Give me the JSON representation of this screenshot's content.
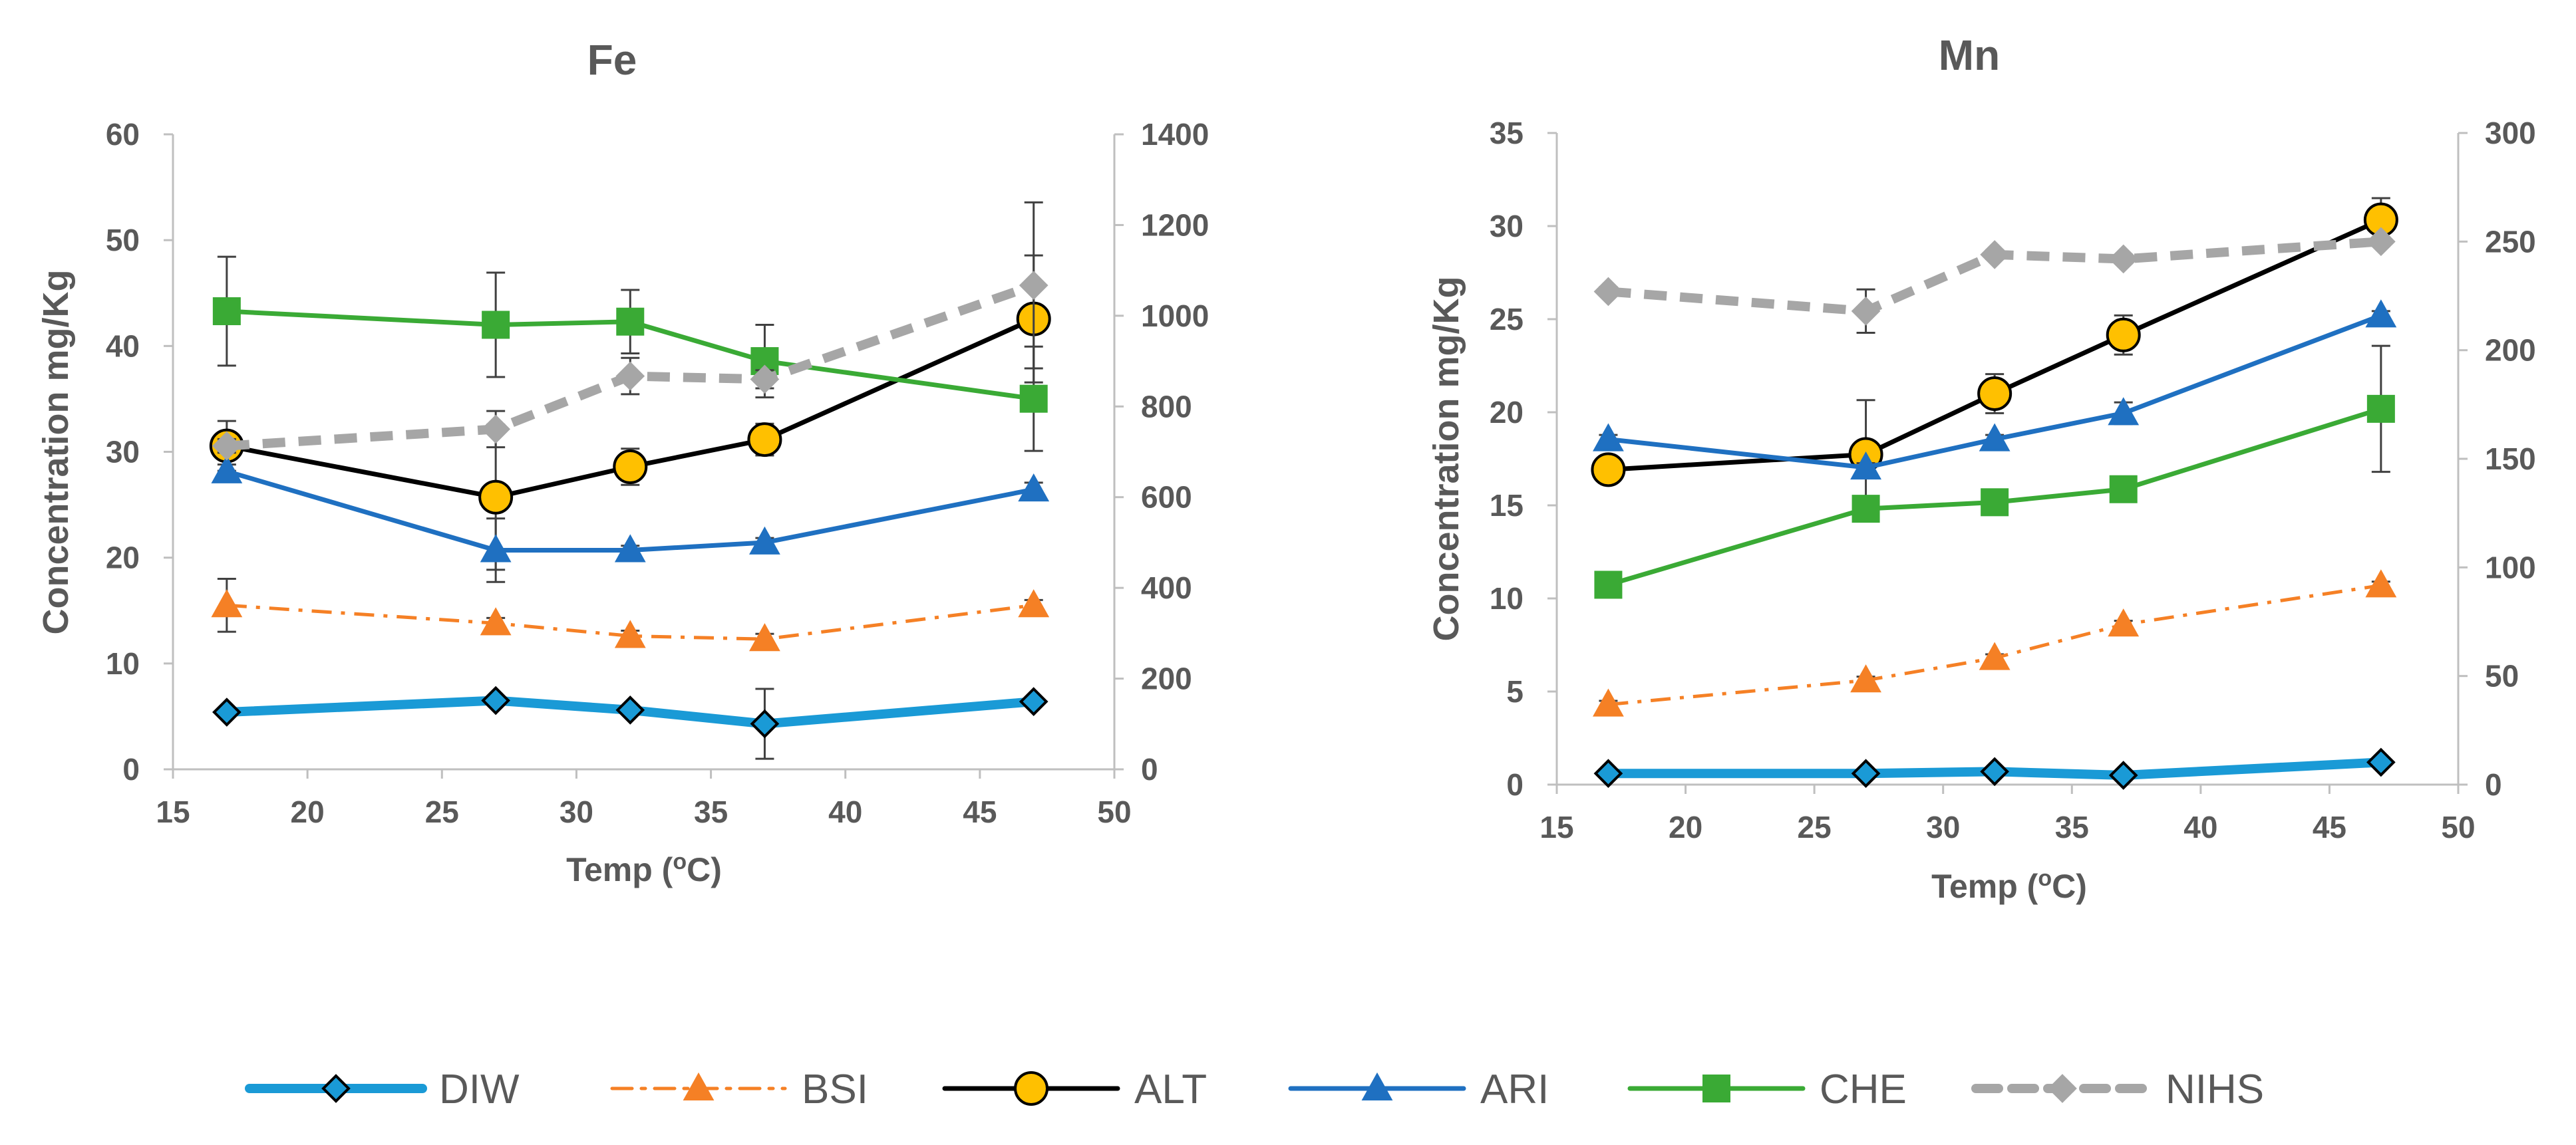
{
  "chart_data": [
    {
      "type": "line",
      "title": "Fe",
      "xlabel_pre": "Temp (",
      "xlabel_sup": "o",
      "xlabel_post": "C)",
      "ylabel": "Concentration mg/Kg",
      "xlim": [
        15,
        50
      ],
      "xticks": [
        "15",
        "20",
        "25",
        "30",
        "35",
        "40",
        "45",
        "50"
      ],
      "ylim": [
        0,
        60
      ],
      "yticks": [
        "0",
        "10",
        "20",
        "30",
        "40",
        "50",
        "60"
      ],
      "y2lim": [
        0,
        1400
      ],
      "y2ticks": [
        "0",
        "200",
        "400",
        "600",
        "800",
        "1000",
        "1200",
        "1400"
      ],
      "x": [
        17,
        27,
        32,
        37,
        47
      ],
      "series": [
        {
          "name": "DIW",
          "axis": "left",
          "values": [
            5.4,
            6.5,
            5.6,
            4.3,
            6.4
          ],
          "err": [
            0.3,
            0.3,
            0.3,
            3.3,
            0.3
          ]
        },
        {
          "name": "BSI",
          "axis": "left",
          "values": [
            15.5,
            13.8,
            12.6,
            12.3,
            15.5
          ],
          "err": [
            2.5,
            0.5,
            0.5,
            0.5,
            0.5
          ]
        },
        {
          "name": "ALT",
          "axis": "right",
          "values": [
            713,
            600,
            667,
            727,
            993
          ],
          "err": [
            55,
            160,
            40,
            35,
            140
          ]
        },
        {
          "name": "ARI",
          "axis": "right",
          "values": [
            657,
            483,
            483,
            500,
            617
          ],
          "err": [
            15,
            70,
            10,
            10,
            15
          ]
        },
        {
          "name": "CHE",
          "axis": "right",
          "values": [
            1010,
            980,
            987,
            900,
            817
          ],
          "err": [
            120,
            115,
            70,
            80,
            115
          ]
        },
        {
          "name": "NIHS",
          "axis": "right",
          "values": [
            713,
            750,
            867,
            860,
            1067
          ],
          "err": [
            15,
            40,
            40,
            20,
            183
          ]
        }
      ]
    },
    {
      "type": "line",
      "title": "Mn",
      "xlabel_pre": "Temp (",
      "xlabel_sup": "o",
      "xlabel_post": "C)",
      "ylabel": "Concentration mg/Kg",
      "xlim": [
        15,
        50
      ],
      "xticks": [
        "15",
        "20",
        "25",
        "30",
        "35",
        "40",
        "45",
        "50"
      ],
      "ylim": [
        0,
        35
      ],
      "yticks": [
        "0",
        "5",
        "10",
        "15",
        "20",
        "25",
        "30",
        "35"
      ],
      "y2lim": [
        0,
        300
      ],
      "y2ticks": [
        "0",
        "50",
        "100",
        "150",
        "200",
        "250",
        "300"
      ],
      "x": [
        17,
        27,
        32,
        37,
        47
      ],
      "series": [
        {
          "name": "DIW",
          "axis": "left",
          "values": [
            0.6,
            0.6,
            0.7,
            0.5,
            1.2
          ],
          "err": [
            0.1,
            0.1,
            0.1,
            0.1,
            0.1
          ]
        },
        {
          "name": "BSI",
          "axis": "left",
          "values": [
            4.3,
            5.6,
            6.8,
            8.6,
            10.7
          ],
          "err": [
            0.2,
            0.2,
            0.2,
            0.2,
            0.2
          ]
        },
        {
          "name": "ALT",
          "axis": "right",
          "values": [
            145,
            152,
            180,
            207,
            260
          ],
          "err": [
            2,
            25,
            9,
            9,
            10
          ]
        },
        {
          "name": "ARI",
          "axis": "right",
          "values": [
            159,
            146,
            159,
            171,
            216
          ],
          "err": [
            2,
            2,
            2,
            5,
            2
          ]
        },
        {
          "name": "CHE",
          "axis": "right",
          "values": [
            92,
            127,
            130,
            136,
            173
          ],
          "err": [
            2,
            2,
            2,
            2,
            29
          ]
        },
        {
          "name": "NIHS",
          "axis": "right",
          "values": [
            227,
            218,
            244,
            242,
            250
          ],
          "err": [
            2,
            10,
            2,
            2,
            2
          ]
        }
      ]
    }
  ],
  "legend": [
    {
      "name": "DIW",
      "color": "#1a9ad6",
      "marker": "diamond",
      "dash": "solid",
      "width": "thick"
    },
    {
      "name": "BSI",
      "color": "#f58025",
      "marker": "triangle",
      "dash": "dashdot",
      "width": "thin"
    },
    {
      "name": "ALT",
      "color": "#000000",
      "marker": "circle",
      "fill": "#ffc000",
      "dash": "solid",
      "width": "normal"
    },
    {
      "name": "ARI",
      "color": "#1f70c1",
      "marker": "triangle",
      "dash": "solid",
      "width": "normal"
    },
    {
      "name": "CHE",
      "color": "#3aaa35",
      "marker": "square",
      "dash": "solid",
      "width": "normal"
    },
    {
      "name": "NIHS",
      "color": "#a6a6a6",
      "marker": "diamond",
      "dash": "dashed",
      "width": "thick"
    }
  ]
}
